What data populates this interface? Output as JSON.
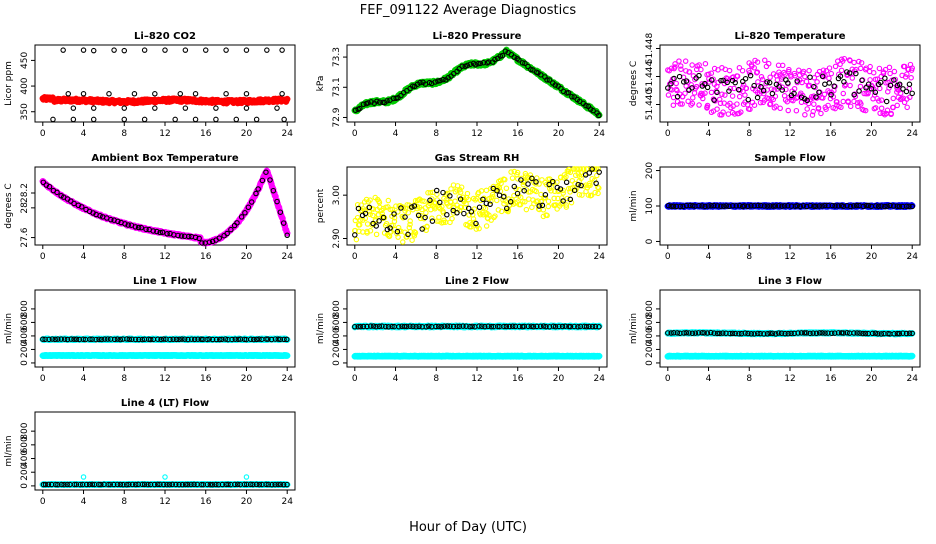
{
  "title": "FEF_091122  Average Diagnostics",
  "xlabel": "Hour of Day (UTC)",
  "colors": {
    "red": "#ff0000",
    "green": "#00cc00",
    "magenta": "#ff00ff",
    "yellow": "#ffff00",
    "blue": "#0000ff",
    "cyan": "#00ffff",
    "black": "#000000"
  },
  "chart_data": [
    {
      "type": "scatter",
      "title": "Li–820 CO2",
      "ylabel": "Licor ppm",
      "xlim": [
        0,
        24
      ],
      "xticks": [
        0,
        4,
        8,
        12,
        16,
        20,
        24
      ],
      "ylim": [
        330,
        480
      ],
      "yticks": [
        350,
        400,
        450
      ],
      "series": [
        {
          "name": "avg",
          "color": "red",
          "shape": "dot",
          "fn": "co2"
        },
        {
          "name": "samples",
          "color": "black",
          "shape": "ring",
          "points": [
            [
              2,
              470
            ],
            [
              4,
              470
            ],
            [
              5,
              469
            ],
            [
              7,
              470
            ],
            [
              8,
              469
            ],
            [
              10,
              470
            ],
            [
              12,
              470
            ],
            [
              14,
              470
            ],
            [
              16,
              470
            ],
            [
              18,
              470
            ],
            [
              20,
              470
            ],
            [
              22,
              470
            ],
            [
              23.5,
              470
            ],
            [
              1,
              335
            ],
            [
              3,
              335
            ],
            [
              5,
              335
            ],
            [
              8,
              335
            ],
            [
              10,
              335
            ],
            [
              13,
              335
            ],
            [
              15,
              335
            ],
            [
              17,
              335
            ],
            [
              19,
              335
            ],
            [
              21,
              335
            ],
            [
              23.7,
              335
            ],
            [
              2.5,
              385
            ],
            [
              4,
              385
            ],
            [
              6.5,
              385
            ],
            [
              9,
              385
            ],
            [
              11,
              385
            ],
            [
              13.5,
              385
            ],
            [
              15,
              385
            ],
            [
              18,
              385
            ],
            [
              20,
              385
            ],
            [
              23.5,
              385
            ],
            [
              3,
              357
            ],
            [
              5,
              357
            ],
            [
              8,
              357
            ],
            [
              11,
              357
            ],
            [
              14,
              357
            ],
            [
              17,
              357
            ],
            [
              20,
              357
            ],
            [
              23,
              357
            ]
          ]
        }
      ]
    },
    {
      "type": "scatter",
      "title": "Li–820 Pressure",
      "ylabel": "kPa",
      "xlim": [
        0,
        24
      ],
      "xticks": [
        0,
        4,
        8,
        12,
        16,
        20,
        24
      ],
      "ylim": [
        72.87,
        73.38
      ],
      "yticks": [
        72.9,
        73.1,
        73.3
      ],
      "series": [
        {
          "name": "avg",
          "color": "green",
          "shape": "dot",
          "fn": "pressure"
        },
        {
          "name": "samples",
          "color": "black",
          "shape": "ring",
          "fn": "pressure",
          "n": 90
        }
      ]
    },
    {
      "type": "scatter",
      "title": "Li–820 Temperature",
      "ylabel": "degrees C",
      "xlim": [
        0,
        24
      ],
      "xticks": [
        0,
        4,
        8,
        12,
        16,
        20,
        24
      ],
      "ylim": [
        51.4375,
        51.4485
      ],
      "yticks": [
        51.44,
        51.444,
        51.448
      ],
      "ytick_labels": [
        "51.440",
        "51.444",
        "51.448"
      ],
      "series": [
        {
          "name": "avg",
          "color": "magenta",
          "shape": "ring",
          "fn": "licortemp",
          "n": 400
        },
        {
          "name": "samples",
          "color": "black",
          "shape": "ring",
          "fn": "licortemp",
          "n": 80
        }
      ]
    },
    {
      "type": "scatter",
      "title": "Ambient Box Temperature",
      "ylabel": "degrees C",
      "xlim": [
        0,
        24
      ],
      "xticks": [
        0,
        4,
        8,
        12,
        16,
        20,
        24
      ],
      "ylim": [
        27.5,
        28.55
      ],
      "yticks": [
        27.6,
        28.0,
        28.2
      ],
      "series": [
        {
          "name": "avg",
          "color": "magenta",
          "shape": "dot",
          "fn": "boxtemp"
        },
        {
          "name": "samples",
          "color": "black",
          "shape": "ring",
          "fn": "boxtemp",
          "n": 70
        }
      ]
    },
    {
      "type": "scatter",
      "title": "Gas Stream RH",
      "ylabel": "percent",
      "xlim": [
        0,
        24
      ],
      "xticks": [
        0,
        4,
        8,
        12,
        16,
        20,
        24
      ],
      "ylim": [
        2.885,
        3.065
      ],
      "yticks": [
        2.9,
        3.0
      ],
      "ytick_labels": [
        "2.90",
        "3.00"
      ],
      "series": [
        {
          "name": "avg",
          "color": "yellow",
          "shape": "ring",
          "fn": "rh",
          "n": 420
        },
        {
          "name": "samples",
          "color": "black",
          "shape": "ring",
          "fn": "rh",
          "n": 70
        }
      ]
    },
    {
      "type": "scatter",
      "title": "Sample Flow",
      "ylabel": "ml/min",
      "xlim": [
        0,
        24
      ],
      "xticks": [
        0,
        4,
        8,
        12,
        16,
        20,
        24
      ],
      "ylim": [
        -10,
        210
      ],
      "yticks": [
        0,
        100,
        200
      ],
      "series": [
        {
          "name": "avg",
          "color": "blue",
          "shape": "dot",
          "fn": "sampleflow"
        },
        {
          "name": "samples",
          "color": "black",
          "shape": "ring",
          "fn": "sampleflow",
          "n": 80
        }
      ]
    },
    {
      "type": "scatter",
      "title": "Line 1 Flow",
      "ylabel": "ml/min",
      "xlim": [
        0,
        24
      ],
      "xticks": [
        0,
        4,
        8,
        12,
        16,
        20,
        24
      ],
      "ylim": [
        -60,
        1080
      ],
      "yticks": [
        0,
        200,
        400,
        600,
        800
      ],
      "series": [
        {
          "name": "cyan-avg",
          "color": "cyan",
          "shape": "dot",
          "fn": "line1"
        },
        {
          "name": "samples",
          "color": "black",
          "shape": "ring",
          "fn": "line1",
          "n": 80
        },
        {
          "name": "cyan-low",
          "color": "cyan",
          "shape": "dot",
          "fn": "line1low"
        }
      ]
    },
    {
      "type": "scatter",
      "title": "Line 2 Flow",
      "ylabel": "ml/min",
      "xlim": [
        0,
        24
      ],
      "xticks": [
        0,
        4,
        8,
        12,
        16,
        20,
        24
      ],
      "ylim": [
        -60,
        1080
      ],
      "yticks": [
        0,
        200,
        400,
        600,
        800
      ],
      "series": [
        {
          "name": "cyan-high",
          "color": "cyan",
          "shape": "dot",
          "fn": "line2"
        },
        {
          "name": "samples",
          "color": "black",
          "shape": "ring",
          "fn": "line2",
          "n": 80
        },
        {
          "name": "cyan-low",
          "color": "cyan",
          "shape": "dot",
          "fn": "line2low"
        }
      ]
    },
    {
      "type": "scatter",
      "title": "Line 3 Flow",
      "ylabel": "ml/min",
      "xlim": [
        0,
        24
      ],
      "xticks": [
        0,
        4,
        8,
        12,
        16,
        20,
        24
      ],
      "ylim": [
        -60,
        1080
      ],
      "yticks": [
        0,
        200,
        400,
        600,
        800
      ],
      "series": [
        {
          "name": "cyan-high",
          "color": "cyan",
          "shape": "dot",
          "fn": "line3"
        },
        {
          "name": "samples",
          "color": "black",
          "shape": "ring",
          "fn": "line3",
          "n": 80
        },
        {
          "name": "cyan-low",
          "color": "cyan",
          "shape": "dot",
          "fn": "line3low"
        }
      ]
    },
    {
      "type": "scatter",
      "title": "Line 4 (LT) Flow",
      "ylabel": "ml/min",
      "xlim": [
        0,
        24
      ],
      "xticks": [
        0,
        4,
        8,
        12,
        16,
        20,
        24
      ],
      "ylim": [
        -60,
        1080
      ],
      "yticks": [
        0,
        200,
        400,
        600,
        800
      ],
      "series": [
        {
          "name": "cyan",
          "color": "cyan",
          "shape": "dot",
          "fn": "line4"
        },
        {
          "name": "samples",
          "color": "black",
          "shape": "ring",
          "fn": "line4",
          "n": 80
        },
        {
          "name": "spikes",
          "color": "cyan",
          "shape": "ring",
          "points": [
            [
              4,
              130
            ],
            [
              12,
              130
            ],
            [
              20,
              130
            ]
          ]
        }
      ]
    }
  ]
}
